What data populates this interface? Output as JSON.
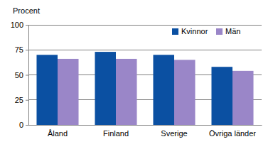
{
  "chart_data": {
    "type": "bar",
    "ylabel": "Procent",
    "categories": [
      "Åland",
      "Finland",
      "Sverige",
      "Övriga länder"
    ],
    "series": [
      {
        "name": "Kvinnor",
        "color": "#0b50a2",
        "values": [
          70,
          73,
          70,
          58
        ]
      },
      {
        "name": "Män",
        "color": "#9a86c8",
        "values": [
          66,
          66,
          65,
          54
        ]
      }
    ],
    "ylim": [
      0,
      100
    ],
    "yticks": [
      0,
      25,
      50,
      75,
      100
    ],
    "grid": true,
    "legend": "upper right"
  }
}
